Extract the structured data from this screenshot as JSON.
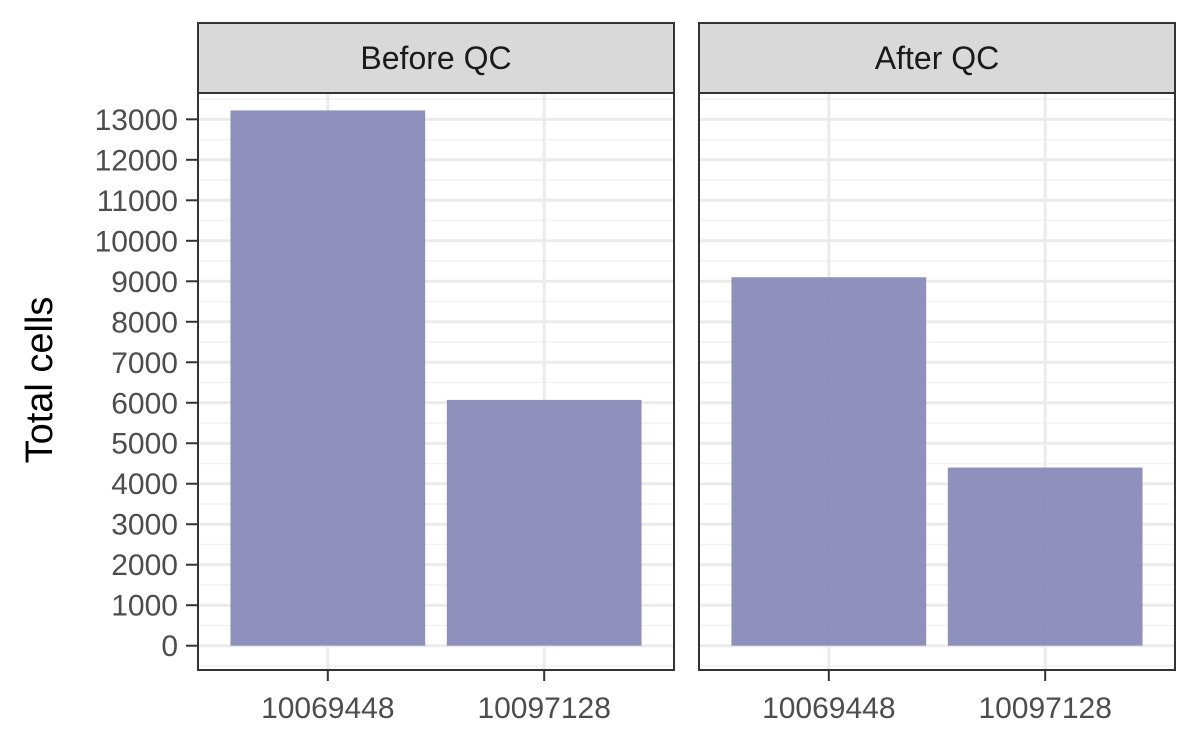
{
  "chart_data": {
    "type": "bar",
    "ylabel": "Total cells",
    "xlabel": "",
    "ylim": [
      -600,
      13650
    ],
    "yticks": [
      0,
      1000,
      2000,
      3000,
      4000,
      5000,
      6000,
      7000,
      8000,
      9000,
      10000,
      11000,
      12000,
      13000
    ],
    "categories": [
      "10069448",
      "10097128"
    ],
    "facets": [
      {
        "label": "Before QC",
        "values": [
          13220,
          6070
        ]
      },
      {
        "label": "After QC",
        "values": [
          9100,
          4400
        ]
      }
    ],
    "bar_color": "#8888b8",
    "grid": true,
    "legend": "none"
  }
}
